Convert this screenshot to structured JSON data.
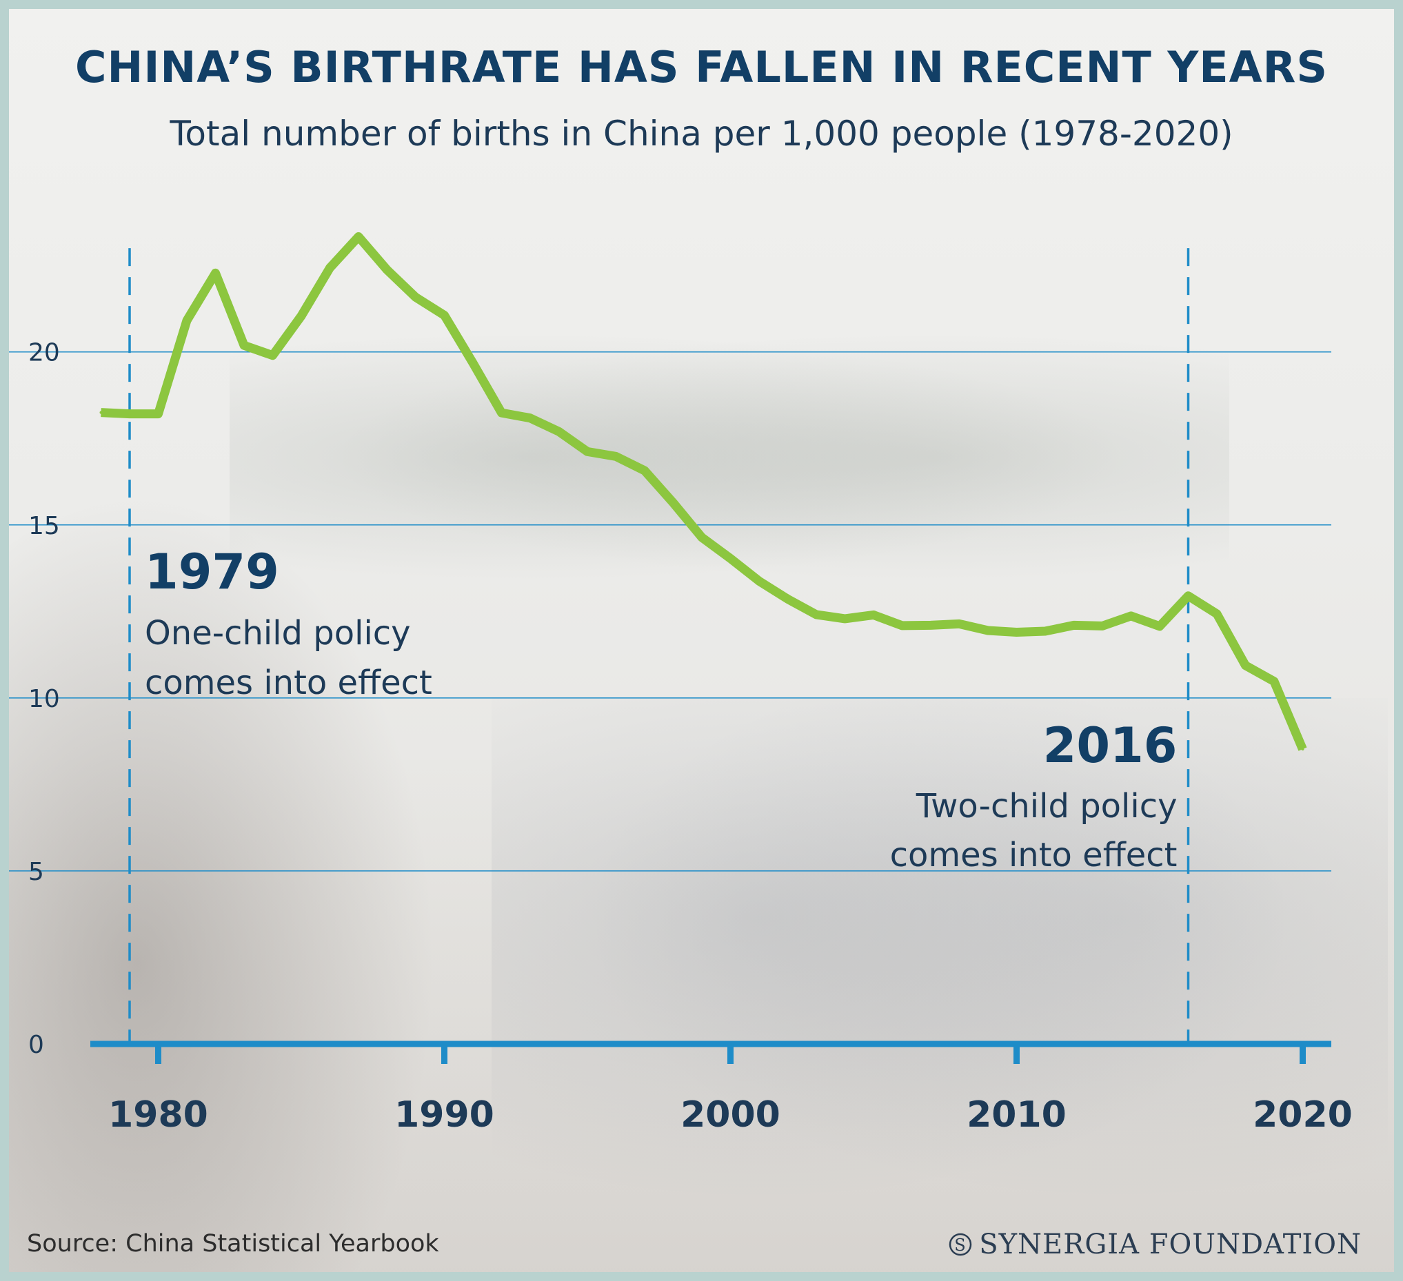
{
  "title": "CHINA’S BIRTHRATE HAS FALLEN IN RECENT YEARS",
  "subtitle": "Total number of births in China per 1,000 people (1978-2020)",
  "source": "Source: China Statistical Yearbook",
  "brand": "SYNERGIA FOUNDATION",
  "colors": {
    "line": "#8cc63f",
    "title": "#123f66",
    "grid": "#1e8cc8",
    "axis": "#1e8cc8",
    "frame": "#b9d2cf"
  },
  "chart_data": {
    "type": "line",
    "title": "CHINA’S BIRTHRATE HAS FALLEN IN RECENT YEARS",
    "subtitle": "Total number of births in China per 1,000 people (1978-2020)",
    "xlabel": "",
    "ylabel": "",
    "xlim": [
      1977,
      2021
    ],
    "ylim": [
      0,
      23.5
    ],
    "grid": true,
    "x_ticks": [
      1980,
      1990,
      2000,
      2010,
      2020
    ],
    "y_ticks": [
      0,
      5,
      10,
      15,
      20
    ],
    "series": [
      {
        "x": [
          1978,
          1979,
          1980,
          1981,
          1982,
          1983,
          1984,
          1985,
          1986,
          1987,
          1988,
          1989,
          1990,
          1991,
          1992,
          1993,
          1994,
          1995,
          1996,
          1997,
          1998,
          1999,
          2000,
          2001,
          2002,
          2003,
          2004,
          2005,
          2006,
          2007,
          2008,
          2009,
          2010,
          2011,
          2012,
          2013,
          2014,
          2015,
          2016,
          2017,
          2018,
          2019,
          2020
        ],
        "values": [
          18.25,
          18.21,
          18.21,
          20.91,
          22.28,
          20.19,
          19.9,
          21.04,
          22.43,
          23.33,
          22.37,
          21.58,
          21.06,
          19.68,
          18.24,
          18.09,
          17.7,
          17.12,
          16.98,
          16.57,
          15.64,
          14.64,
          14.03,
          13.38,
          12.86,
          12.41,
          12.29,
          12.4,
          12.09,
          12.1,
          12.14,
          11.95,
          11.9,
          11.93,
          12.1,
          12.08,
          12.37,
          12.07,
          12.95,
          12.43,
          10.94,
          10.48,
          8.52
        ]
      }
    ],
    "annotations": [
      {
        "x": 1979,
        "year": "1979",
        "lines": [
          "One-child policy",
          "comes into effect"
        ]
      },
      {
        "x": 2016,
        "year": "2016",
        "lines": [
          "Two-child policy",
          "comes into effect"
        ]
      }
    ]
  }
}
